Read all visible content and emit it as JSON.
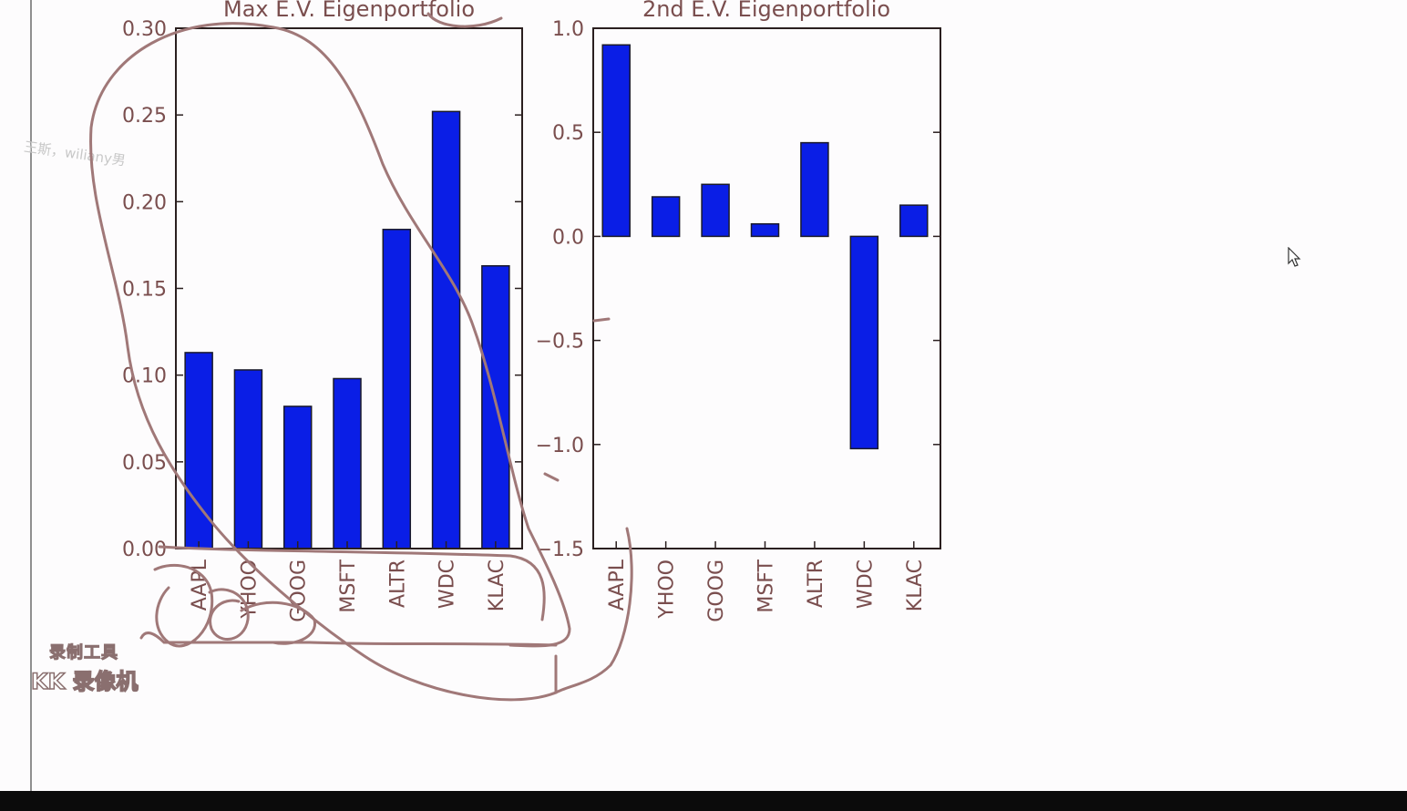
{
  "window": {
    "note": "王斯，wiliany男"
  },
  "watermark": {
    "line1": "录制工具",
    "line2": "KK 录像机"
  },
  "colors": {
    "bar": "#0a1ee6",
    "axis": "#2a1f1f",
    "tick_text": "#7a4e4e",
    "ink": "#a07878",
    "background": "#fdfcfd"
  },
  "icons": {
    "cursor": "mouse-pointer-icon"
  },
  "chart_data": [
    {
      "type": "bar",
      "title": "Max E.V. Eigenportfolio",
      "categories": [
        "AAPL",
        "YHOO",
        "GOOG",
        "MSFT",
        "ALTR",
        "WDC",
        "KLAC"
      ],
      "values": [
        0.113,
        0.103,
        0.082,
        0.098,
        0.184,
        0.252,
        0.163
      ],
      "ylim": [
        0.0,
        0.3
      ],
      "yticks": [
        "0.00",
        "0.05",
        "0.10",
        "0.15",
        "0.20",
        "0.25",
        "0.30"
      ],
      "xlabel": "",
      "ylabel": ""
    },
    {
      "type": "bar",
      "title": "2nd E.V. Eigenportfolio",
      "categories": [
        "AAPL",
        "YHOO",
        "GOOG",
        "MSFT",
        "ALTR",
        "WDC",
        "KLAC"
      ],
      "values": [
        0.92,
        0.19,
        0.25,
        0.06,
        0.45,
        -1.02,
        0.15
      ],
      "ylim": [
        -1.5,
        1.0
      ],
      "yticks": [
        "1.0",
        "0.5",
        "0.0",
        "−0.5",
        "−1.0",
        "−1.5"
      ],
      "xlabel": "",
      "ylabel": ""
    }
  ]
}
